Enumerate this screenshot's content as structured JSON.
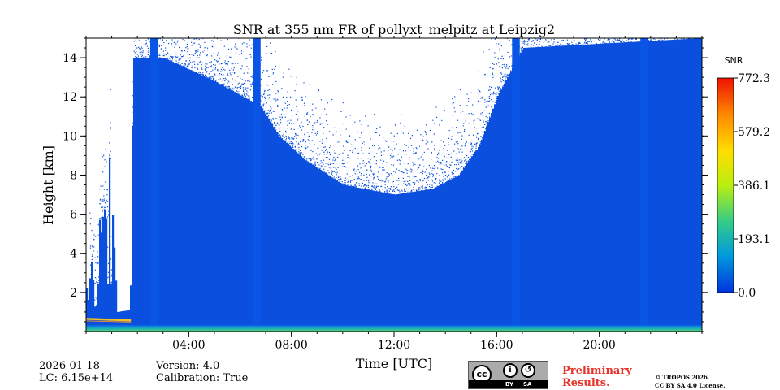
{
  "chart_data": {
    "type": "heatmap",
    "title": "SNR at 355 nm FR of pollyxt_melpitz at Leipzig2",
    "xlabel": "Time [UTC]",
    "ylabel": "Height [km]",
    "xlim_hours": [
      0,
      24
    ],
    "ylim_km": [
      0,
      15
    ],
    "x_ticks": [
      {
        "hour": 4,
        "label": "04:00"
      },
      {
        "hour": 8,
        "label": "08:00"
      },
      {
        "hour": 12,
        "label": "12:00"
      },
      {
        "hour": 16,
        "label": "16:00"
      },
      {
        "hour": 20,
        "label": "20:00"
      }
    ],
    "y_ticks": [
      2,
      4,
      6,
      8,
      10,
      12,
      14
    ],
    "colorbar": {
      "label": "SNR",
      "min": 0.0,
      "max": 772.3,
      "tick_values": [
        0.0,
        193.1,
        386.1,
        579.2,
        772.3
      ],
      "tick_labels": [
        "0.0",
        "193.1",
        "386.1",
        "579.2",
        "772.3"
      ],
      "colormap": [
        "#0033dd",
        "#0099dd",
        "#33cc88",
        "#bbee11",
        "#ffdd00",
        "#ff8800",
        "#ee1100"
      ]
    },
    "signal_top_km_by_hour": [
      [
        0.0,
        3
      ],
      [
        0.5,
        6
      ],
      [
        0.9,
        9
      ],
      [
        1.2,
        1
      ],
      [
        1.7,
        1.1
      ],
      [
        1.8,
        14
      ],
      [
        3,
        14
      ],
      [
        5,
        12.8
      ],
      [
        6.8,
        11.5
      ],
      [
        7.5,
        10
      ],
      [
        8.5,
        8.8
      ],
      [
        10,
        7.5
      ],
      [
        12,
        7.0
      ],
      [
        13.5,
        7.3
      ],
      [
        14.5,
        8.0
      ],
      [
        15.3,
        9.5
      ],
      [
        16,
        12
      ],
      [
        17,
        14.5
      ],
      [
        24,
        15
      ]
    ],
    "gaps_hours": [
      [
        0.0,
        0.1
      ],
      [
        1.0,
        1.75
      ]
    ],
    "aerosol_layer": {
      "start_hour": 0.0,
      "end_hour": 1.75,
      "height_km": 0.65
    },
    "vertical_bands_hours": [
      [
        2.5,
        2.8
      ],
      [
        6.5,
        6.8
      ],
      [
        16.6,
        16.9
      ],
      [
        21.6,
        21.9
      ]
    ],
    "boundary_layer_top_km": 0.35
  },
  "footer": {
    "date": "2026-01-18",
    "lc": "LC: 6.15e+14",
    "version": "Version: 4.0",
    "calibration": "Calibration: True",
    "preliminary_line1": "Preliminary",
    "preliminary_line2": "Results.",
    "copyright_line1": "© TROPOS 2026.",
    "copyright_line2": "CC BY SA 4.0 License.",
    "license_badge": {
      "cc": "cc",
      "by": "BY",
      "sa": "SA"
    }
  }
}
